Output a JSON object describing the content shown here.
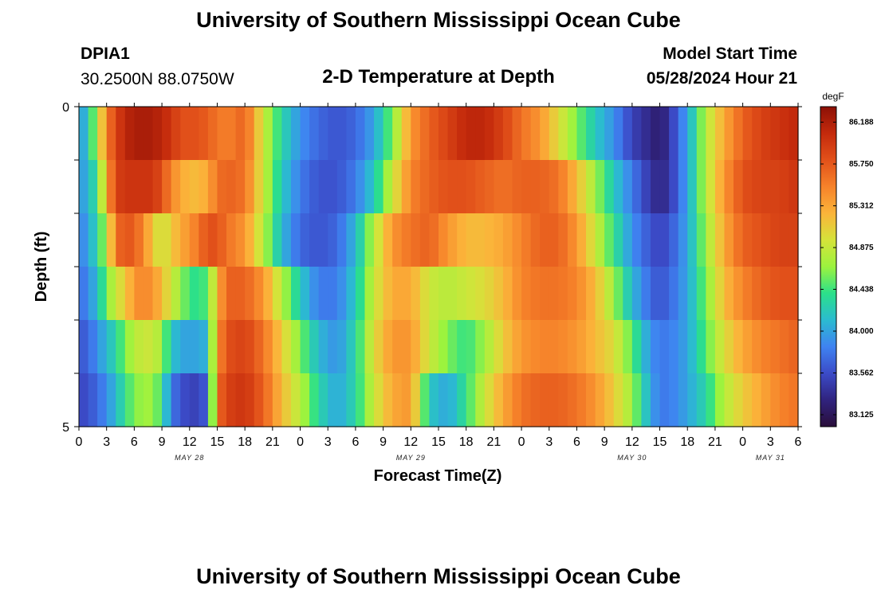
{
  "header": {
    "title": "University of Southern Mississippi Ocean Cube",
    "station": "DPIA1",
    "coords": "30.2500N  88.0750W",
    "model_start_label": "Model Start Time",
    "model_start_value": "05/28/2024 Hour 21"
  },
  "footer": {
    "title": "University of Southern Mississippi Ocean Cube"
  },
  "colors": {
    "scale": [
      "#2a0e3a",
      "#30237e",
      "#3b4bc8",
      "#3f83f1",
      "#2bbbd0",
      "#2be08a",
      "#9cf33e",
      "#d5e33a",
      "#fbb43a",
      "#f6822a",
      "#e2511a",
      "#c42a0c",
      "#8c1006"
    ]
  },
  "chart_data": {
    "type": "heatmap",
    "title": "2-D Temperature at Depth",
    "xlabel": "Forecast Time(Z)",
    "ylabel": "Depth (ft)",
    "colorbar_unit": "degF",
    "colorbar_ticks": [
      "86.188",
      "85.750",
      "85.312",
      "84.875",
      "84.438",
      "84.000",
      "83.562",
      "83.125"
    ],
    "color_range": [
      83.0,
      86.35
    ],
    "x_tick_labels": [
      "0",
      "3",
      "6",
      "9",
      "12",
      "15",
      "18",
      "21",
      "0",
      "3",
      "6",
      "9",
      "12",
      "15",
      "18",
      "21",
      "0",
      "3",
      "6",
      "9",
      "12",
      "15",
      "18",
      "21",
      "0",
      "3",
      "6"
    ],
    "date_labels": [
      {
        "text": "MAY 28",
        "at_tick": 4
      },
      {
        "text": "MAY 29",
        "at_tick": 12
      },
      {
        "text": "MAY 30",
        "at_tick": 20
      },
      {
        "text": "MAY 31",
        "at_tick": 25
      }
    ],
    "ylim": [
      0,
      5
    ],
    "y_tick_labels": [
      "0",
      "5"
    ],
    "hours_total": 78,
    "depth_bands": 5,
    "key_times": [
      0,
      1,
      2,
      3,
      4,
      5,
      6,
      7,
      8,
      9,
      10,
      11,
      12,
      13,
      14,
      15,
      16,
      18,
      20,
      22,
      24,
      26,
      28,
      30,
      32,
      34,
      36,
      38,
      40,
      42,
      44,
      46,
      48,
      50,
      52,
      54,
      56,
      58,
      60,
      62,
      63,
      64,
      66,
      68,
      70,
      72,
      74,
      76,
      78
    ],
    "rows": [
      [
        83.9,
        84.2,
        84.8,
        85.5,
        85.9,
        86.1,
        86.2,
        86.2,
        86.2,
        86.1,
        86.0,
        85.8,
        85.8,
        85.8,
        85.7,
        85.6,
        85.5,
        85.7,
        84.9,
        84.3,
        83.9,
        83.7,
        83.6,
        83.7,
        84.0,
        84.6,
        85.4,
        85.7,
        85.9,
        86.1,
        86.1,
        85.9,
        85.6,
        85.4,
        85.0,
        84.6,
        84.2,
        83.9,
        83.5,
        83.3,
        83.2,
        83.4,
        84.0,
        84.8,
        85.3,
        85.7,
        85.9,
        86.0,
        86.1
      ],
      [
        83.9,
        84.1,
        84.4,
        85.3,
        85.9,
        86.0,
        86.0,
        86.0,
        86.0,
        85.8,
        85.5,
        85.3,
        85.2,
        85.2,
        85.3,
        85.6,
        85.7,
        85.6,
        84.9,
        84.2,
        83.8,
        83.6,
        83.6,
        83.8,
        84.2,
        84.9,
        85.5,
        85.7,
        85.8,
        85.8,
        85.7,
        85.6,
        85.7,
        85.7,
        85.6,
        85.2,
        84.7,
        84.2,
        83.8,
        83.4,
        83.3,
        83.4,
        84.0,
        84.8,
        85.4,
        85.8,
        85.9,
        85.9,
        86.0
      ],
      [
        83.8,
        84.0,
        84.3,
        84.8,
        85.6,
        85.8,
        85.7,
        85.5,
        85.1,
        84.9,
        85.1,
        85.3,
        85.4,
        85.6,
        85.8,
        85.8,
        85.6,
        85.4,
        84.8,
        84.1,
        83.7,
        83.6,
        83.7,
        84.1,
        84.8,
        85.4,
        85.6,
        85.7,
        85.4,
        85.2,
        85.2,
        85.3,
        85.5,
        85.7,
        85.7,
        85.4,
        84.9,
        84.4,
        83.9,
        83.6,
        83.5,
        83.6,
        84.0,
        84.7,
        85.3,
        85.7,
        85.8,
        85.9,
        85.9
      ],
      [
        83.7,
        83.9,
        84.1,
        84.6,
        84.9,
        85.1,
        85.4,
        85.5,
        85.4,
        85.2,
        84.9,
        84.7,
        84.4,
        84.4,
        84.5,
        85.2,
        85.7,
        85.7,
        85.4,
        84.8,
        84.2,
        83.8,
        83.8,
        84.2,
        84.9,
        85.3,
        85.3,
        84.9,
        84.8,
        84.9,
        85.0,
        85.2,
        85.5,
        85.6,
        85.6,
        85.5,
        85.2,
        84.7,
        84.1,
        83.7,
        83.6,
        83.7,
        84.0,
        84.6,
        85.2,
        85.5,
        85.7,
        85.8,
        85.8
      ],
      [
        83.6,
        83.7,
        83.9,
        84.1,
        84.3,
        84.6,
        84.8,
        84.9,
        84.9,
        84.7,
        84.2,
        84.0,
        84.0,
        84.0,
        84.1,
        85.4,
        85.8,
        85.9,
        85.6,
        85.1,
        84.6,
        84.1,
        83.9,
        84.3,
        85.0,
        85.4,
        85.4,
        84.9,
        84.6,
        84.4,
        84.7,
        85.1,
        85.4,
        85.5,
        85.5,
        85.4,
        85.2,
        85.0,
        84.5,
        83.9,
        83.8,
        83.8,
        84.0,
        84.5,
        85.0,
        85.3,
        85.5,
        85.6,
        85.7
      ],
      [
        83.5,
        83.6,
        83.7,
        83.9,
        84.1,
        84.4,
        84.6,
        84.7,
        84.7,
        84.4,
        83.8,
        83.6,
        83.5,
        83.5,
        83.7,
        85.6,
        85.9,
        86.0,
        85.7,
        85.2,
        84.8,
        84.3,
        84.0,
        84.3,
        84.9,
        85.3,
        85.4,
        84.2,
        84.0,
        84.4,
        84.9,
        85.3,
        85.6,
        85.7,
        85.7,
        85.6,
        85.4,
        85.1,
        84.7,
        84.0,
        83.8,
        83.8,
        84.0,
        84.3,
        84.8,
        85.1,
        85.3,
        85.5,
        85.6
      ]
    ]
  }
}
